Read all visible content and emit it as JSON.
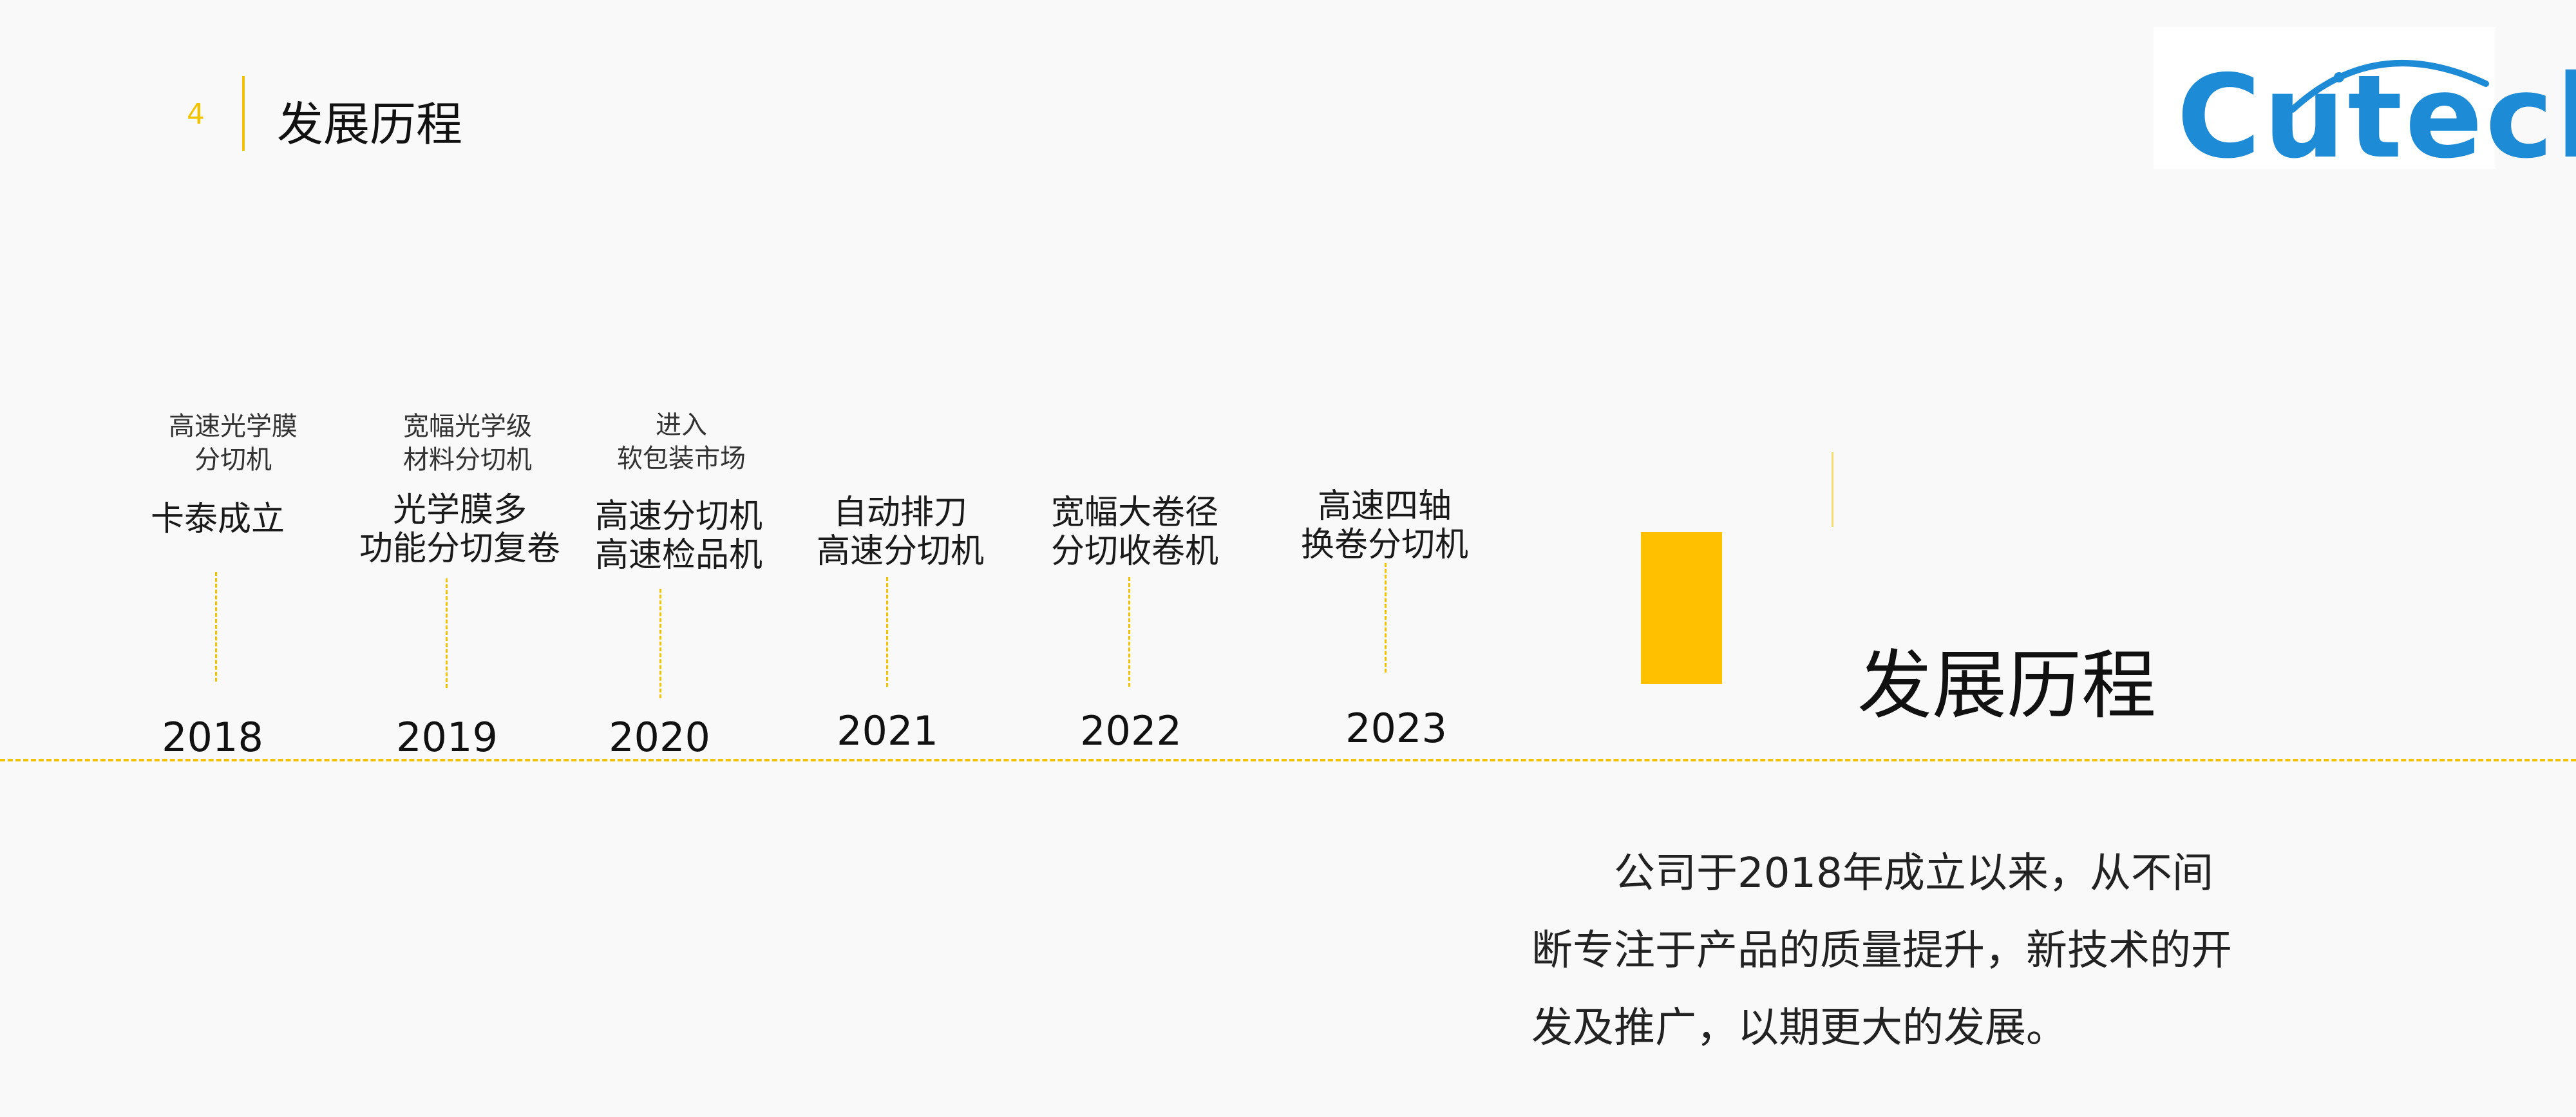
{
  "header": {
    "page_number": "4",
    "title": "发展历程"
  },
  "logo": {
    "text": "Cutech"
  },
  "timeline": [
    {
      "year": "2018",
      "title_lines": [
        "卡泰成立"
      ],
      "sub_lines": [
        "高速光学膜",
        "分切机"
      ]
    },
    {
      "year": "2019",
      "title_lines": [
        "光学膜多",
        "功能分切复卷"
      ],
      "sub_lines": [
        "宽幅光学级",
        "材料分切机"
      ]
    },
    {
      "year": "2020",
      "title_lines": [
        "高速分切机",
        "高速检品机"
      ],
      "sub_lines": [
        "进入",
        "软包装市场"
      ]
    },
    {
      "year": "2021",
      "title_lines": [
        "自动排刀",
        "高速分切机"
      ],
      "sub_lines": []
    },
    {
      "year": "2022",
      "title_lines": [
        "宽幅大卷径",
        "分切收卷机"
      ],
      "sub_lines": []
    },
    {
      "year": "2023",
      "title_lines": [
        "高速四轴",
        "换卷分切机"
      ],
      "sub_lines": []
    }
  ],
  "panel": {
    "title": "发展历程",
    "description": "公司于2018年成立以来，从不间断专注于产品的质量提升，新技术的开发及推广，以期更大的发展。"
  },
  "colors": {
    "accent": "#ffc000",
    "logo_blue": "#1d8bd6"
  }
}
